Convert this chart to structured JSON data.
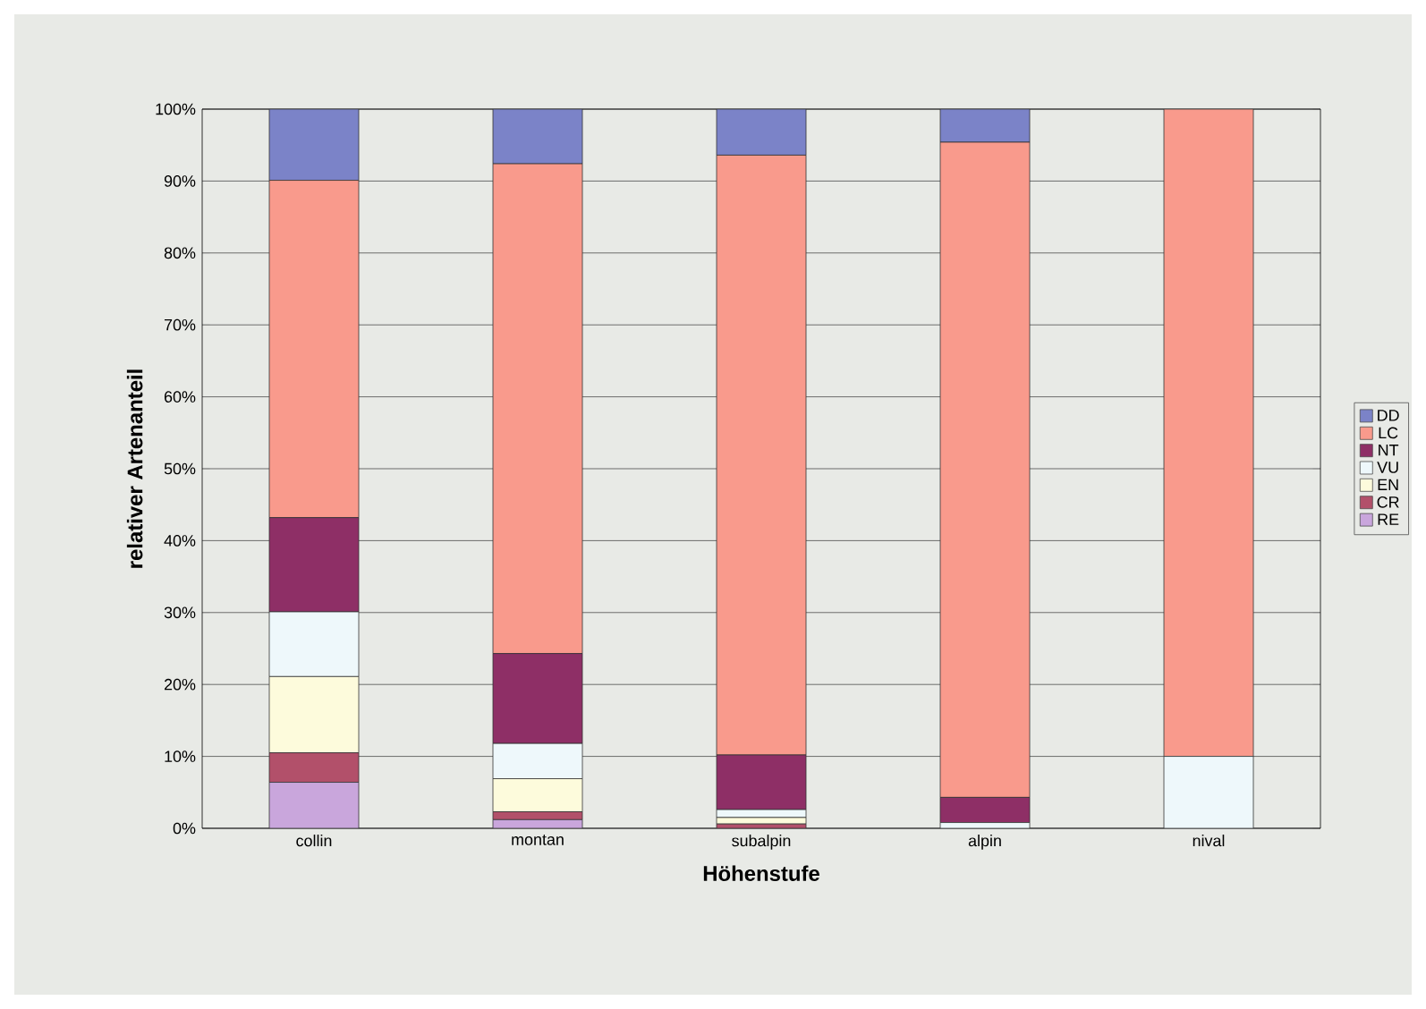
{
  "chart_data": {
    "type": "bar",
    "stacked": true,
    "xlabel": "Höhenstufe",
    "ylabel": "relativer Artenanteil",
    "categories": [
      "collin",
      "montan",
      "subalpin",
      "alpin",
      "nival"
    ],
    "series": [
      {
        "name": "RE",
        "color": "#c9a6dc",
        "values": [
          6.4,
          1.2,
          null,
          0,
          0
        ]
      },
      {
        "name": "CR",
        "color": "#b2506a",
        "values": [
          4.1,
          1.1,
          0.6,
          0,
          0
        ]
      },
      {
        "name": "EN",
        "color": "#fdfbdc",
        "values": [
          10.6,
          4.6,
          0.9,
          0,
          0
        ]
      },
      {
        "name": "VU",
        "color": "#eef8fb",
        "values": [
          9.0,
          4.9,
          1.1,
          0.8,
          10
        ]
      },
      {
        "name": "NT",
        "color": "#8e2f66",
        "values": [
          13.1,
          12.5,
          7.6,
          3.5,
          0
        ]
      },
      {
        "name": "LC",
        "color": "#f99a8c",
        "values": [
          46.9,
          68.1,
          83.4,
          91.1,
          90
        ]
      },
      {
        "name": "DD",
        "color": "#7b83c8",
        "values": [
          9.9,
          7.6,
          6.4,
          4.6,
          0
        ]
      }
    ],
    "ylim": [
      0,
      100
    ],
    "yticks": [
      {
        "value": 0,
        "label": "0%"
      },
      {
        "value": 10,
        "label": "10%"
      },
      {
        "value": 20,
        "label": "20%"
      },
      {
        "value": 30,
        "label": "30%"
      },
      {
        "value": 40,
        "label": "40%"
      },
      {
        "value": 50,
        "label": "50%"
      },
      {
        "value": 60,
        "label": "60%"
      },
      {
        "value": 70,
        "label": "70%"
      },
      {
        "value": 80,
        "label": "80%"
      },
      {
        "value": 90,
        "label": "90%"
      },
      {
        "value": 100,
        "label": "100%"
      }
    ],
    "grid": "y",
    "legend": "right"
  }
}
